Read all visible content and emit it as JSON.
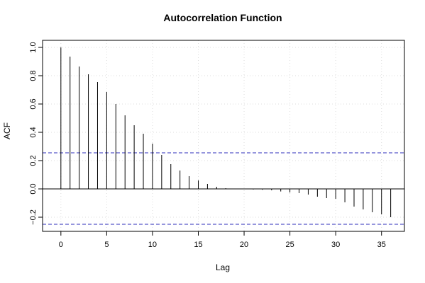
{
  "chart_data": {
    "type": "bar",
    "title": "Autocorrelation Function",
    "xlabel": "Lag",
    "ylabel": "ACF",
    "xlim": [
      -2,
      37.5
    ],
    "ylim": [
      -0.3,
      1.05
    ],
    "x_ticks": [
      0,
      5,
      10,
      15,
      20,
      25,
      30,
      35
    ],
    "y_ticks": [
      -0.2,
      0.0,
      0.2,
      0.4,
      0.6,
      0.8,
      1.0
    ],
    "x_tick_labels": [
      "0",
      "5",
      "10",
      "15",
      "20",
      "25",
      "30",
      "35"
    ],
    "y_tick_labels": [
      "−0.2",
      "0.0",
      "0.2",
      "0.4",
      "0.6",
      "0.8",
      "1.0"
    ],
    "grid": true,
    "confidence_bounds": [
      0.255,
      -0.25
    ],
    "lags": [
      0,
      1,
      2,
      3,
      4,
      5,
      6,
      7,
      8,
      9,
      10,
      11,
      12,
      13,
      14,
      15,
      16,
      17,
      18,
      19,
      20,
      21,
      22,
      23,
      24,
      25,
      26,
      27,
      28,
      29,
      30,
      31,
      32,
      33,
      34,
      35,
      36
    ],
    "values": [
      1.0,
      0.935,
      0.865,
      0.81,
      0.755,
      0.685,
      0.6,
      0.52,
      0.45,
      0.39,
      0.32,
      0.24,
      0.175,
      0.13,
      0.09,
      0.06,
      0.035,
      0.015,
      0.005,
      0.0,
      -0.002,
      -0.004,
      -0.006,
      -0.01,
      -0.018,
      -0.025,
      -0.03,
      -0.04,
      -0.055,
      -0.065,
      -0.07,
      -0.095,
      -0.125,
      -0.145,
      -0.165,
      -0.18,
      -0.2
    ],
    "colors": {
      "bars": "#000000",
      "bounds": "#2e2ebb",
      "grid": "#dcdcdc",
      "axis": "#000000"
    }
  }
}
